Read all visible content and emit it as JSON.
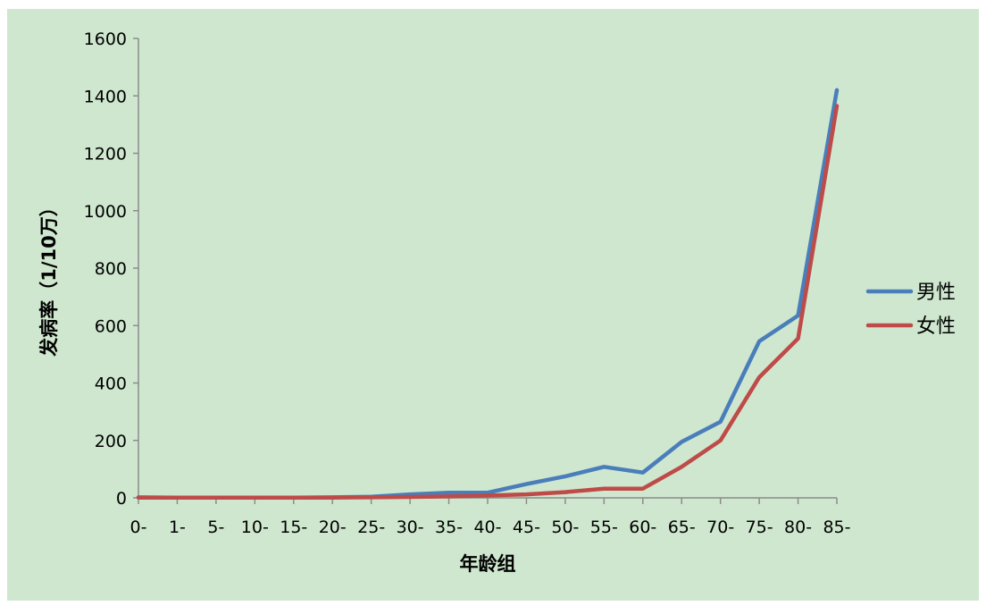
{
  "chart_data": {
    "type": "line",
    "title": "",
    "xlabel": "年龄组",
    "ylabel": "发病率（1/10万）",
    "categories": [
      "0-",
      "1-",
      "5-",
      "10-",
      "15-",
      "20-",
      "25-",
      "30-",
      "35-",
      "40-",
      "45-",
      "50-",
      "55-",
      "60-",
      "65-",
      "70-",
      "75-",
      "80-",
      "85-"
    ],
    "ylim": [
      0,
      1600
    ],
    "yticks": [
      "0",
      "200",
      "400",
      "600",
      "800",
      "1000",
      "1200",
      "1400",
      "1600"
    ],
    "grid": false,
    "legend_position": "right",
    "series": [
      {
        "name": "男性",
        "color": "#4a7ebb",
        "values": [
          2,
          1,
          1,
          1,
          1,
          2,
          4,
          12,
          18,
          18,
          48,
          75,
          108,
          88,
          195,
          265,
          545,
          635,
          1420
        ]
      },
      {
        "name": "女性",
        "color": "#be4b48",
        "values": [
          1,
          1,
          1,
          1,
          1,
          1,
          2,
          3,
          5,
          8,
          12,
          20,
          32,
          32,
          108,
          200,
          420,
          555,
          1365
        ]
      }
    ],
    "background": "#cfe7cf"
  }
}
